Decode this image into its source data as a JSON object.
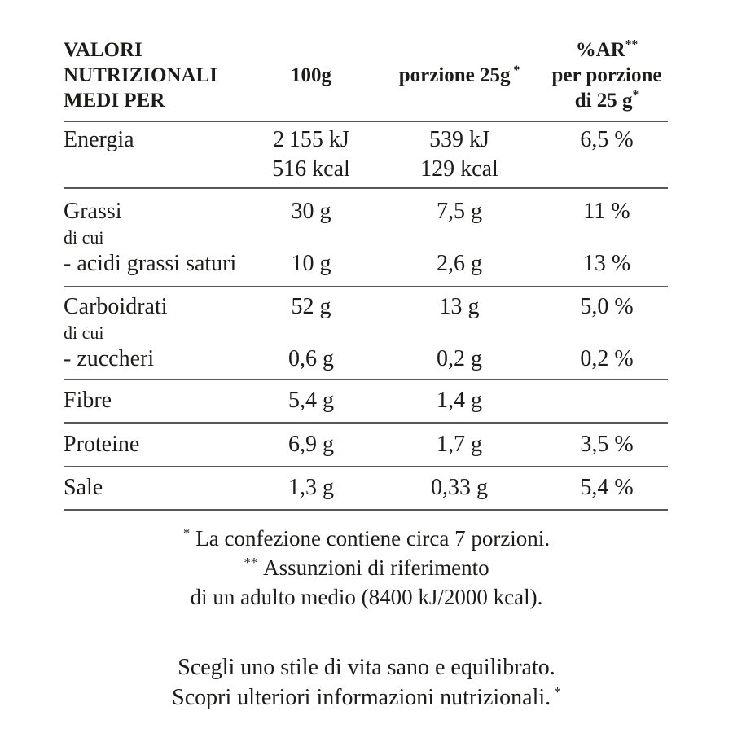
{
  "colors": {
    "text": "#1d1c1a",
    "rule": "#58585a",
    "background": "#ffffff"
  },
  "table": {
    "header": {
      "col1_line1": "VALORI",
      "col1_line2": "NUTRIZIONALI",
      "col1_line3": "MEDI PER",
      "col2": "100g",
      "col3": "porzione 25g",
      "col3_mark": "*",
      "col4_line1": "%AR",
      "col4_line1_mark": "**",
      "col4_line2": "per porzione",
      "col4_line3": "di 25 g",
      "col4_line3_mark": "*"
    },
    "rows": {
      "energia": {
        "label": "Energia",
        "per100_kj": "2 155 kJ",
        "per100_kcal": "516 kcal",
        "portion_kj": "539 kJ",
        "portion_kcal": "129 kcal",
        "ar": "6,5 %"
      },
      "grassi": {
        "label": "Grassi",
        "di_cui": "di cui",
        "sub_label": "- acidi grassi saturi",
        "per100": "30 g",
        "portion": "7,5 g",
        "ar": "11 %",
        "sub_per100": "10 g",
        "sub_portion": "2,6 g",
        "sub_ar": "13 %"
      },
      "carboidrati": {
        "label": "Carboidrati",
        "di_cui": "di cui",
        "sub_label": "- zuccheri",
        "per100": "52 g",
        "portion": "13 g",
        "ar": "5,0 %",
        "sub_per100": "0,6 g",
        "sub_portion": "0,2 g",
        "sub_ar": "0,2 %"
      },
      "fibre": {
        "label": "Fibre",
        "per100": "5,4 g",
        "portion": "1,4 g",
        "ar": ""
      },
      "proteine": {
        "label": "Proteine",
        "per100": "6,9 g",
        "portion": "1,7 g",
        "ar": "3,5 %"
      },
      "sale": {
        "label": "Sale",
        "per100": "1,3 g",
        "portion": "0,33 g",
        "ar": "5,4 %"
      }
    }
  },
  "footnotes": {
    "line1_mark": "*",
    "line1_text": "La confezione contiene circa 7 porzioni.",
    "line2_mark": "**",
    "line2_text": "Assunzioni di riferimento",
    "line3_text": "di un adulto medio (8400 kJ/2000 kcal)."
  },
  "claims": {
    "line1": "Scegli uno stile di vita sano e equilibrato.",
    "line2": "Scopri ulteriori informazioni nutrizionali.",
    "line2_mark": "*"
  }
}
